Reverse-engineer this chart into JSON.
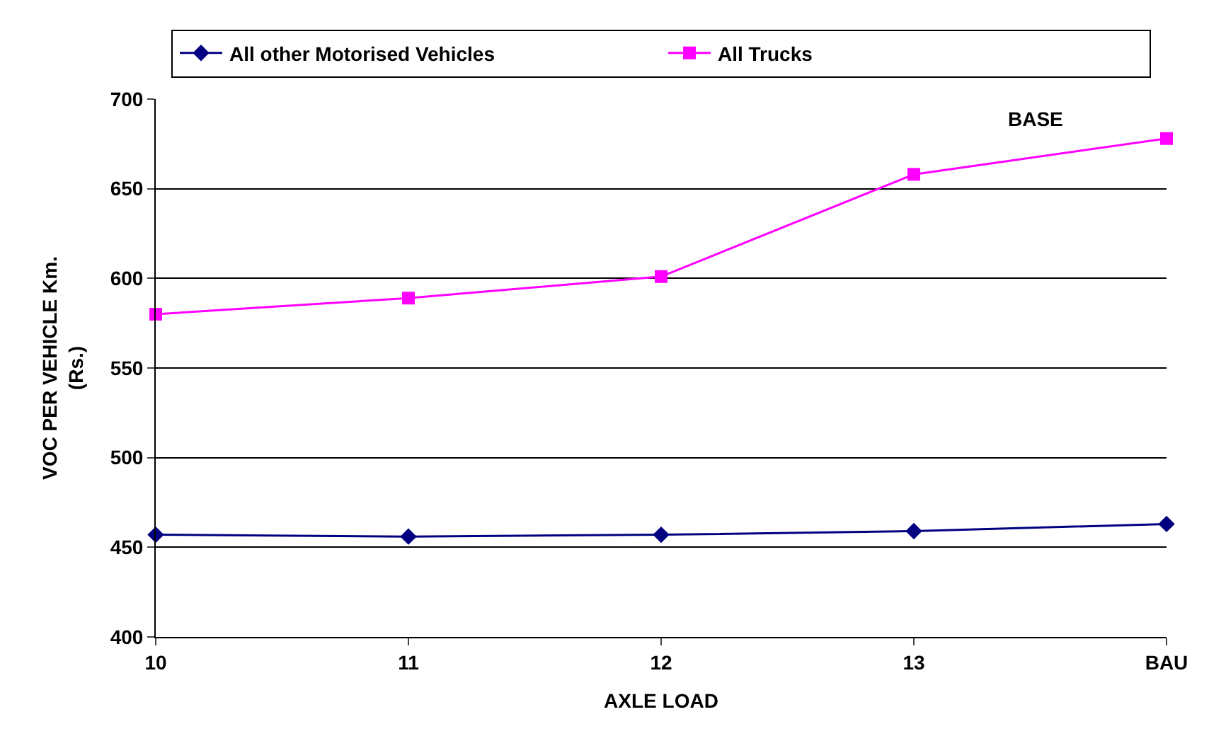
{
  "chart_data": {
    "type": "line",
    "xlabel": "AXLE LOAD",
    "ylabel": "VOC PER VEHICLE Km.\n(Rs.)",
    "categories": [
      "10",
      "11",
      "12",
      "13",
      "BAU"
    ],
    "series": [
      {
        "name": "All other Motorised Vehicles",
        "color": "#000080",
        "marker": "diamond",
        "values": [
          457,
          456,
          457,
          459,
          463
        ]
      },
      {
        "name": "All Trucks",
        "color": "#ff00ff",
        "marker": "square",
        "values": [
          580,
          589,
          601,
          658,
          678
        ]
      }
    ],
    "ylim": [
      400,
      700
    ],
    "yticks": [
      400,
      450,
      500,
      550,
      600,
      650,
      700
    ],
    "grid": "y",
    "legend": "top",
    "line_style": "solid",
    "annotations": [
      "BASE"
    ]
  }
}
